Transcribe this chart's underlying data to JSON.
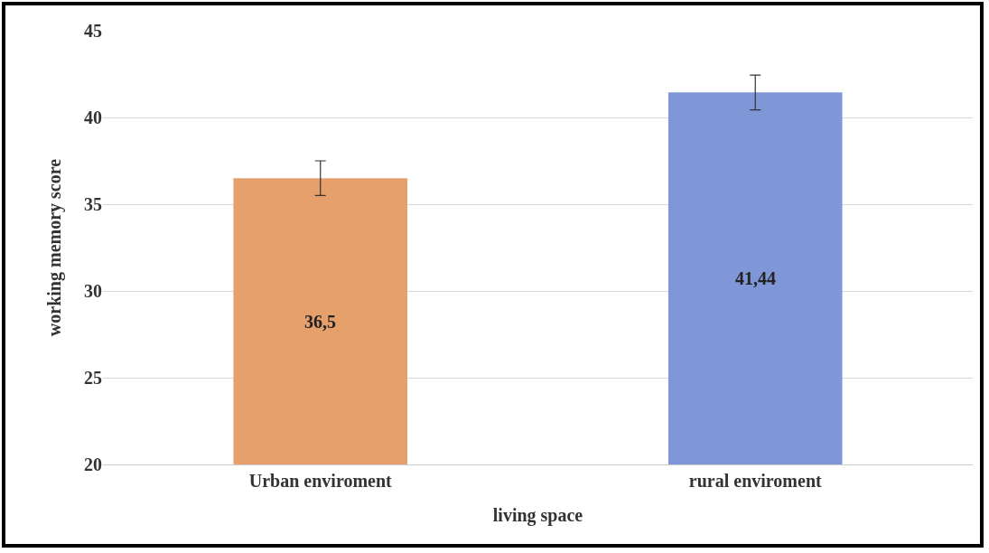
{
  "chart_data": {
    "type": "bar",
    "xlabel": "living space",
    "ylabel": "working memory score",
    "categories": [
      "Urban enviroment",
      "rural enviroment"
    ],
    "values": [
      36.5,
      41.44
    ],
    "colors": [
      "#e6a06c",
      "#7f97d6"
    ],
    "errors": [
      1,
      1
    ],
    "value_labels": [
      "36,5",
      "41,44"
    ],
    "ylim": [
      20,
      45
    ],
    "yticks": [
      20,
      25,
      30,
      35,
      40,
      45
    ],
    "grid": "y"
  }
}
